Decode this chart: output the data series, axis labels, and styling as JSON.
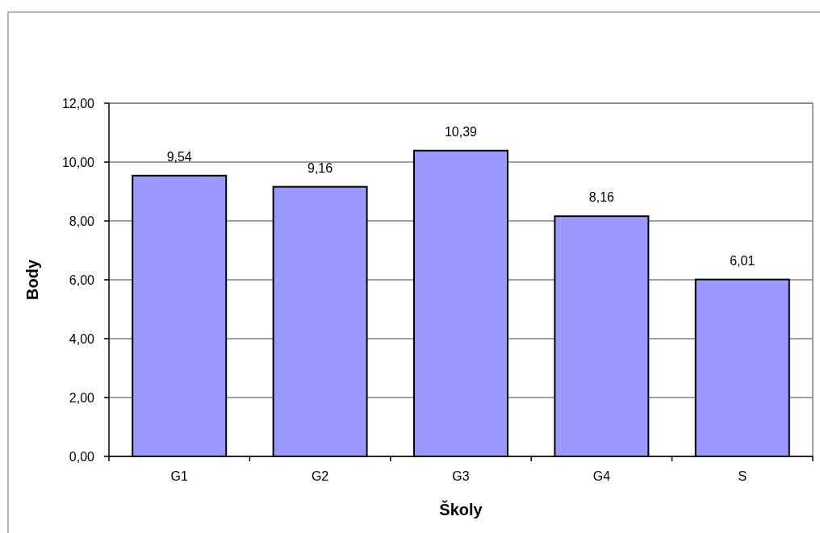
{
  "chart_data": {
    "type": "bar",
    "xlabel": "Školy",
    "ylabel": "Body",
    "categories": [
      "G1",
      "G2",
      "G3",
      "G4",
      "S"
    ],
    "values": [
      9.54,
      9.16,
      10.39,
      8.16,
      6.01
    ],
    "value_labels": [
      "9,54",
      "9,16",
      "10,39",
      "8,16",
      "6,01"
    ],
    "color": "#9999ff",
    "ylim": [
      0,
      12
    ],
    "yticks": [
      {
        "value": 0,
        "label": "0,00"
      },
      {
        "value": 2,
        "label": "2,00"
      },
      {
        "value": 4,
        "label": "4,00"
      },
      {
        "value": 6,
        "label": "6,00"
      },
      {
        "value": 8,
        "label": "8,00"
      },
      {
        "value": 10,
        "label": "10,00"
      },
      {
        "value": 12,
        "label": "12,00"
      }
    ],
    "grid": "y"
  }
}
